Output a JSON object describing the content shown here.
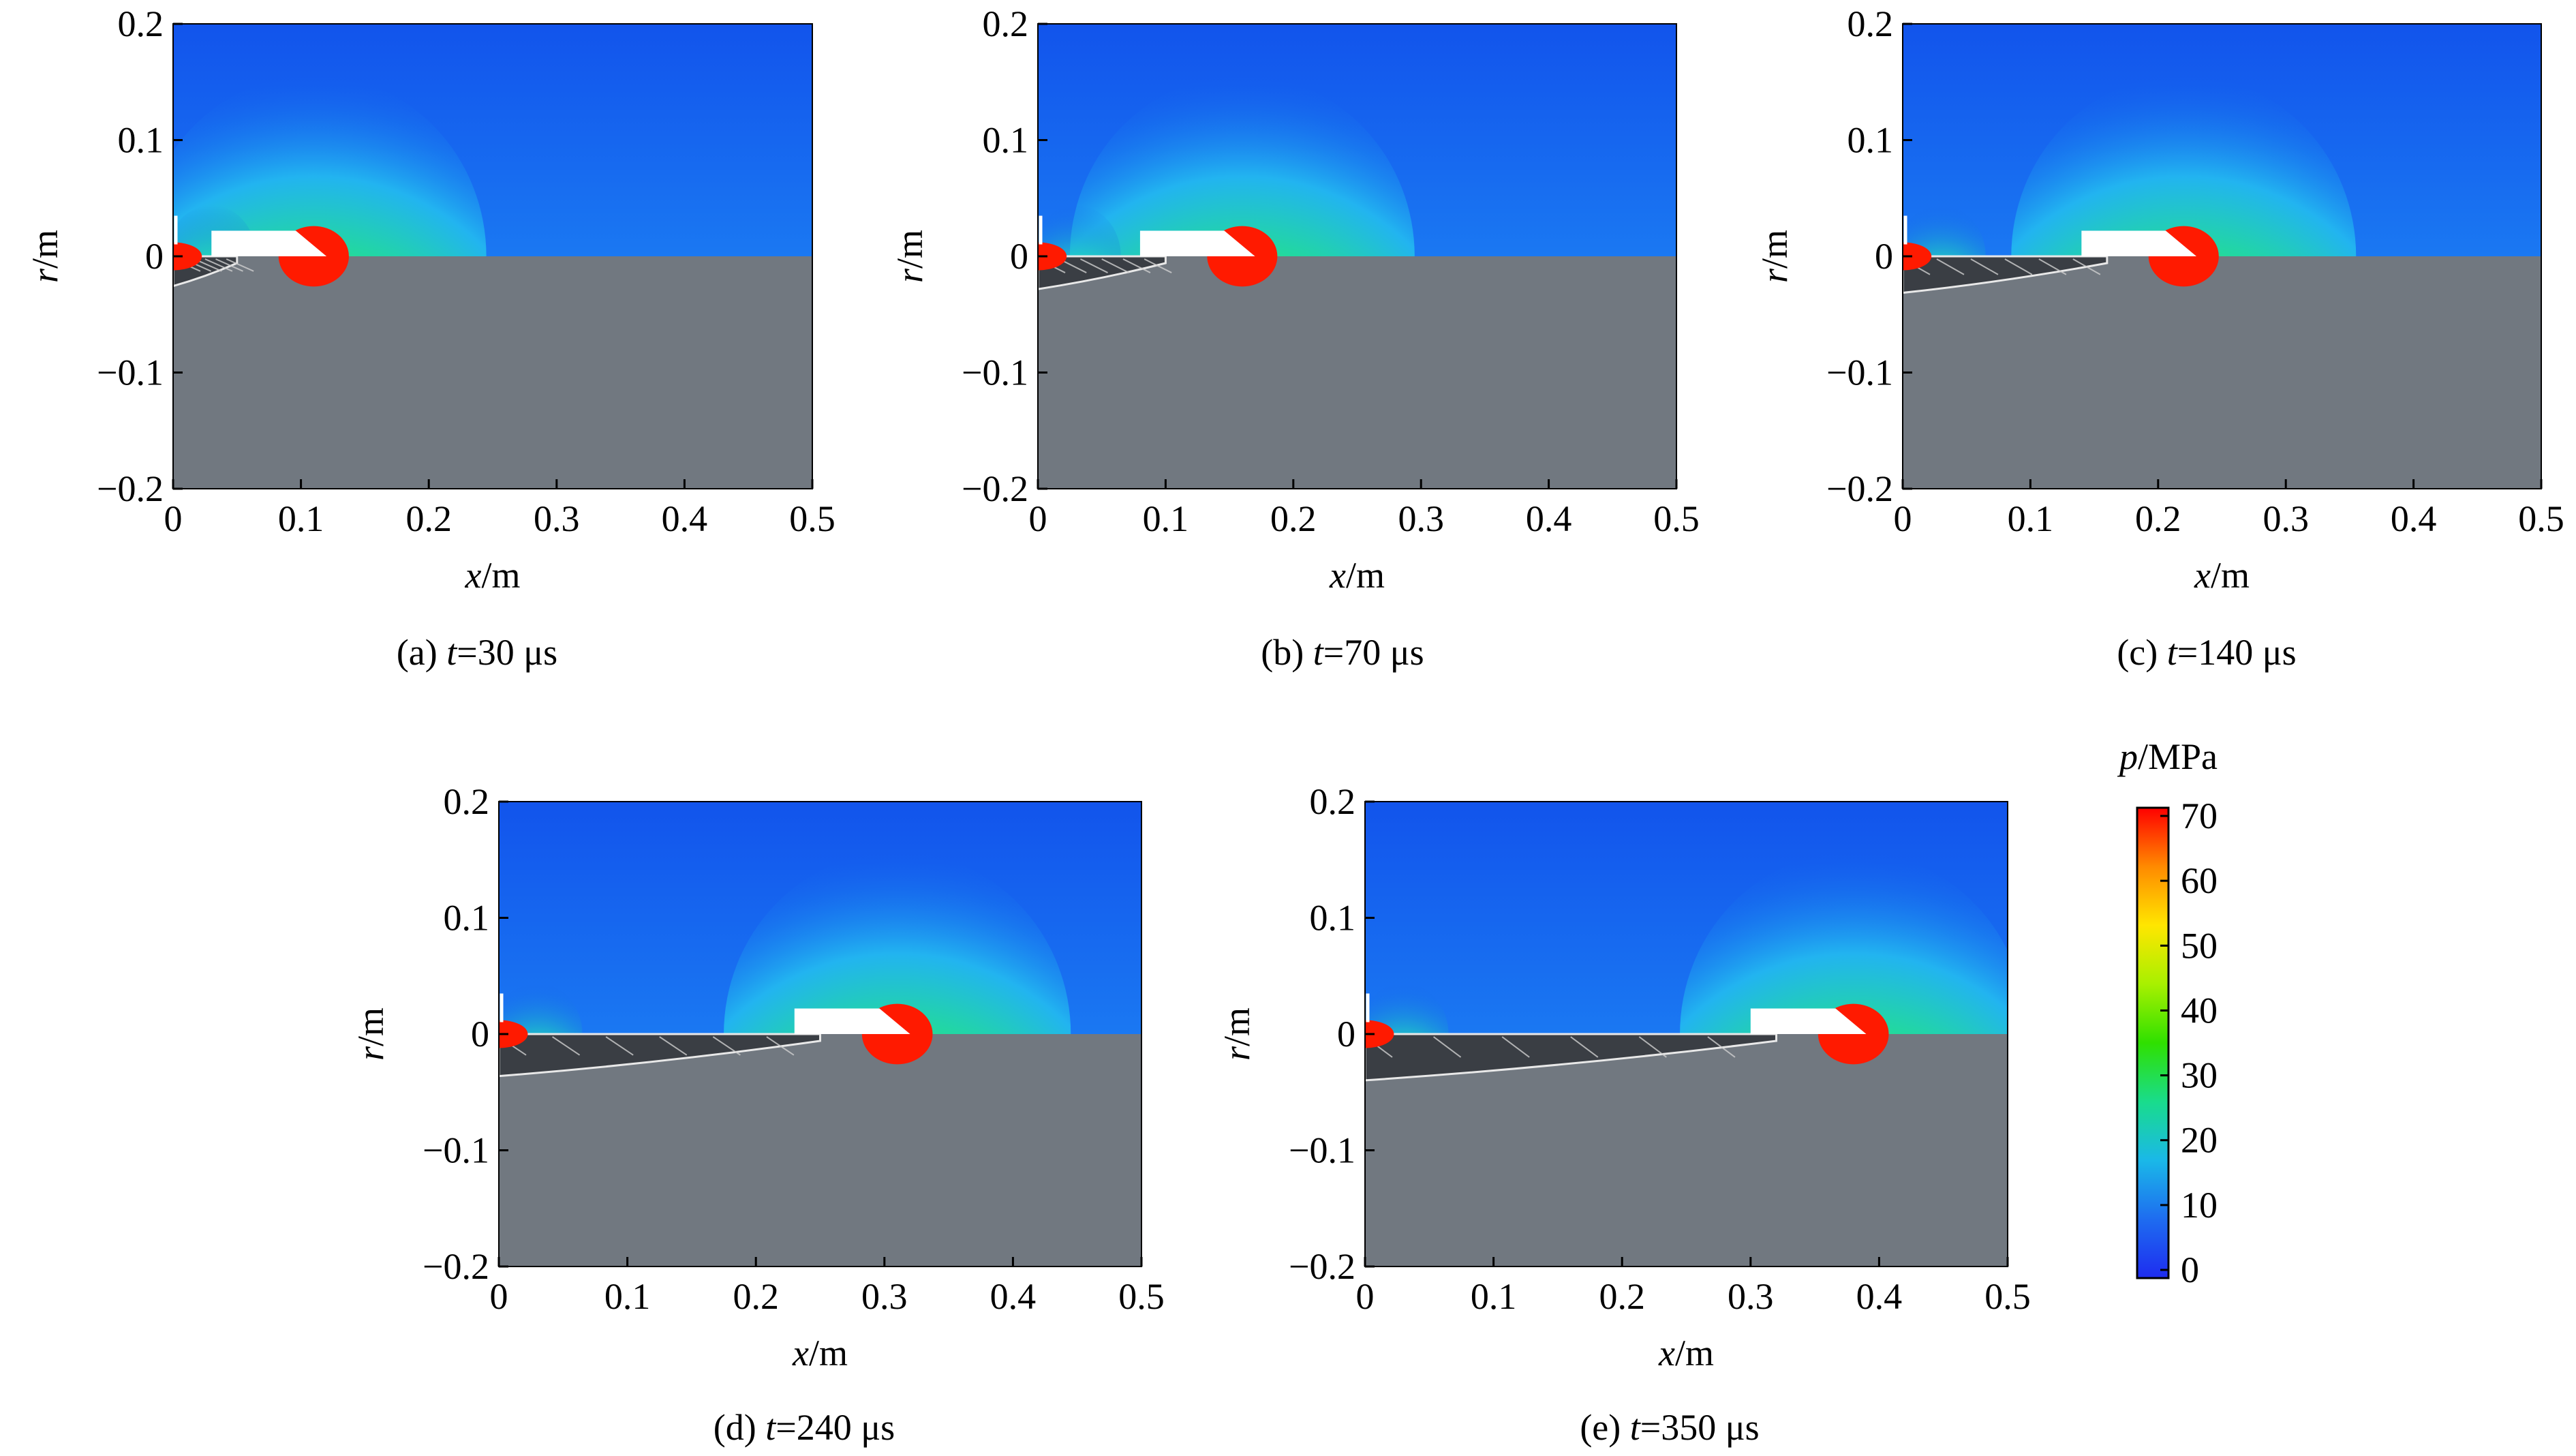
{
  "figure": {
    "x_axis_label": {
      "var": "x",
      "unit": "/m"
    },
    "y_axis_label": {
      "var": "r",
      "unit": "/m"
    },
    "x_ticks": [
      "0",
      "0.1",
      "0.2",
      "0.3",
      "0.4",
      "0.5"
    ],
    "y_ticks": [
      "0.2",
      "0.1",
      "0",
      "−0.1",
      "−0.2"
    ],
    "panels": [
      {
        "id": "a",
        "caption_prefix": "(a) ",
        "caption_var": "t",
        "caption_value": "=30 μs"
      },
      {
        "id": "b",
        "caption_prefix": "(b) ",
        "caption_var": "t",
        "caption_value": "=70 μs"
      },
      {
        "id": "c",
        "caption_prefix": "(c) ",
        "caption_var": "t",
        "caption_value": "=140 μs"
      },
      {
        "id": "d",
        "caption_prefix": "(d) ",
        "caption_var": "t",
        "caption_value": "=240 μs"
      },
      {
        "id": "e",
        "caption_prefix": "(e) ",
        "caption_var": "t",
        "caption_value": "=350 μs"
      }
    ],
    "colorbar": {
      "label_var": "p",
      "label_unit": "/MPa",
      "ticks": [
        "70",
        "60",
        "50",
        "40",
        "30",
        "20",
        "10",
        "0"
      ],
      "colors": [
        "#ff0000",
        "#ff8a00",
        "#ffe600",
        "#a8f000",
        "#2fe000",
        "#19dc8c",
        "#1ab8e8",
        "#1e6cf0",
        "#1e2cf0"
      ]
    },
    "colors": {
      "fluid_background": "#1460ee",
      "solid_region": "#717880",
      "projectile": "#ffffff",
      "high_pressure": "#ff1a00"
    }
  },
  "chart_data": [
    {
      "type": "heatmap",
      "panel": "(a)",
      "t_us": 30,
      "xlim": [
        0,
        0.5
      ],
      "ylim": [
        -0.2,
        0.2
      ],
      "xlabel": "x/m",
      "ylabel": "r/m",
      "colorbar": {
        "label": "p/MPa",
        "range": [
          0,
          70
        ]
      },
      "projectile_x_range": [
        0.03,
        0.12
      ],
      "peak_pressure_center_x": 0.11
    },
    {
      "type": "heatmap",
      "panel": "(b)",
      "t_us": 70,
      "xlim": [
        0,
        0.5
      ],
      "ylim": [
        -0.2,
        0.2
      ],
      "xlabel": "x/m",
      "ylabel": "r/m",
      "colorbar": {
        "label": "p/MPa",
        "range": [
          0,
          70
        ]
      },
      "projectile_x_range": [
        0.08,
        0.17
      ],
      "peak_pressure_center_x": 0.16
    },
    {
      "type": "heatmap",
      "panel": "(c)",
      "t_us": 140,
      "xlim": [
        0,
        0.5
      ],
      "ylim": [
        -0.2,
        0.2
      ],
      "xlabel": "x/m",
      "ylabel": "r/m",
      "colorbar": {
        "label": "p/MPa",
        "range": [
          0,
          70
        ]
      },
      "projectile_x_range": [
        0.14,
        0.23
      ],
      "peak_pressure_center_x": 0.22
    },
    {
      "type": "heatmap",
      "panel": "(d)",
      "t_us": 240,
      "xlim": [
        0,
        0.5
      ],
      "ylim": [
        -0.2,
        0.2
      ],
      "xlabel": "x/m",
      "ylabel": "r/m",
      "colorbar": {
        "label": "p/MPa",
        "range": [
          0,
          70
        ]
      },
      "projectile_x_range": [
        0.23,
        0.32
      ],
      "peak_pressure_center_x": 0.31
    },
    {
      "type": "heatmap",
      "panel": "(e)",
      "t_us": 350,
      "xlim": [
        0,
        0.5
      ],
      "ylim": [
        -0.2,
        0.2
      ],
      "xlabel": "x/m",
      "ylabel": "r/m",
      "colorbar": {
        "label": "p/MPa",
        "range": [
          0,
          70
        ]
      },
      "projectile_x_range": [
        0.3,
        0.39
      ],
      "peak_pressure_center_x": 0.38
    }
  ]
}
